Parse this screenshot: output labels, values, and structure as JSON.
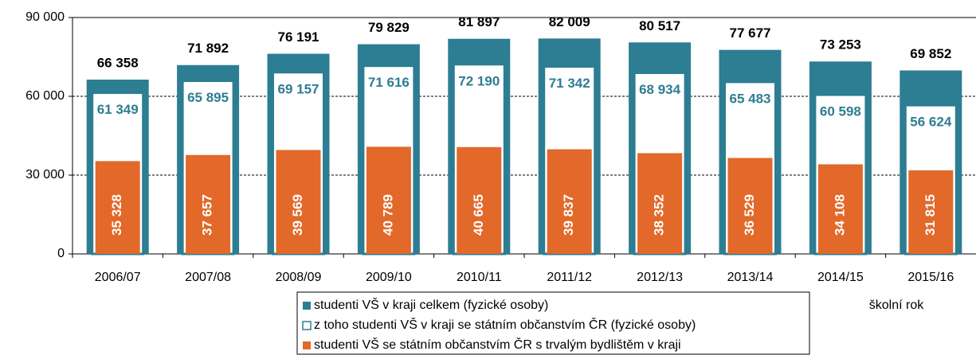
{
  "chart_data": {
    "type": "bar",
    "x_label": "školní rok",
    "categories": [
      "2006/07",
      "2007/08",
      "2008/09",
      "2009/10",
      "2010/11",
      "2011/12",
      "2012/13",
      "2013/14",
      "2014/15",
      "2015/16"
    ],
    "series": [
      {
        "name": "studenti VŠ v kraji celkem (fyzické osoby)",
        "color": "#2d7d93",
        "values": [
          66358,
          71892,
          76191,
          79829,
          81897,
          82009,
          80517,
          77677,
          73253,
          69852
        ],
        "value_labels": [
          "66 358",
          "71 892",
          "76 191",
          "79 829",
          "81 897",
          "82 009",
          "80 517",
          "77 677",
          "73 253",
          "69 852"
        ]
      },
      {
        "name": "z toho studenti VŠ v kraji se státním občanstvím ČR (fyzické osoby)",
        "color": "#ffffff",
        "values": [
          61349,
          65895,
          69157,
          71616,
          72190,
          71342,
          68934,
          65483,
          60598,
          56624
        ],
        "value_labels": [
          "61 349",
          "65 895",
          "69 157",
          "71 616",
          "72 190",
          "71 342",
          "68 934",
          "65 483",
          "60 598",
          "56 624"
        ]
      },
      {
        "name": "studenti VŠ se státním občanstvím ČR s trvalým bydlištěm v kraji",
        "color": "#e2692a",
        "values": [
          35328,
          37657,
          39569,
          40789,
          40665,
          39837,
          38352,
          36529,
          34108,
          31815
        ],
        "value_labels": [
          "35 328",
          "37 657",
          "39 569",
          "40 789",
          "40 665",
          "39 837",
          "38 352",
          "36 529",
          "34 108",
          "31 815"
        ]
      }
    ],
    "ylim": [
      0,
      90000
    ],
    "yticks": [
      0,
      {
        "value": 30000,
        "label": "30 000"
      },
      {
        "value": 60000,
        "label": "60 000"
      },
      {
        "value": 90000,
        "label": "90 000"
      }
    ],
    "grid": true
  }
}
